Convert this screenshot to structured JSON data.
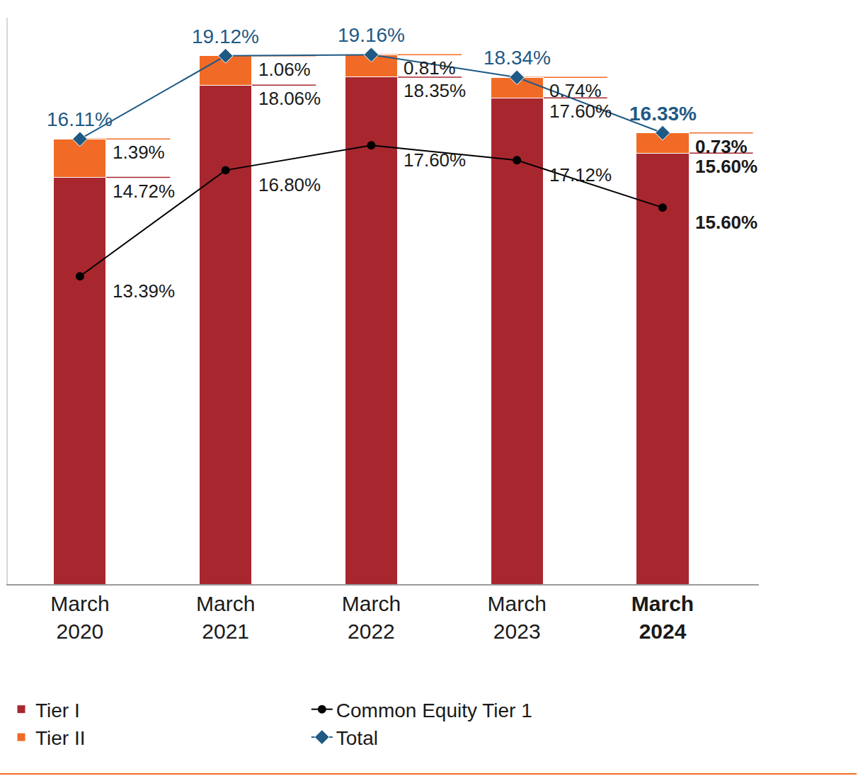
{
  "chart_data": {
    "type": "bar",
    "categories": [
      "March 2020",
      "March 2021",
      "March 2022",
      "March 2023",
      "March 2024"
    ],
    "stacked": true,
    "data_labels": true,
    "tick_labels": "x",
    "grid": false,
    "legend": "bottom left",
    "ylim": [
      0,
      20.5
    ],
    "yticks": [],
    "y2lim": [
      3.5,
      21.7
    ],
    "y2ticks": [],
    "series": [
      {
        "name": "Tier I",
        "type": "bar",
        "color": "#a8272f",
        "values": [
          14.72,
          18.06,
          18.35,
          17.6,
          15.6
        ],
        "value_labels": [
          "14.72%",
          "18.06%",
          "18.35%",
          "17.60%",
          "15.60%"
        ]
      },
      {
        "name": "Tier II",
        "type": "bar",
        "color": "#f26b26",
        "values": [
          1.39,
          1.06,
          0.81,
          0.74,
          0.73
        ],
        "value_labels": [
          "1.39%",
          "1.06%",
          "0.81%",
          "0.74%",
          "0.73%"
        ]
      },
      {
        "name": "Common Equity Tier 1",
        "type": "line",
        "color": "#000000",
        "marker": "circle",
        "axis": "y2",
        "values": [
          13.39,
          16.8,
          17.6,
          17.12,
          15.6
        ],
        "value_labels": [
          "13.39%",
          "16.80%",
          "17.60%",
          "17.12%",
          "15.60%"
        ]
      },
      {
        "name": "Total",
        "type": "line",
        "color": "#1f5a85",
        "marker": "diamond",
        "values": [
          16.11,
          19.12,
          19.16,
          18.34,
          16.33
        ],
        "value_labels": [
          "16.11%",
          "19.12%",
          "19.16%",
          "18.34%",
          "16.33%"
        ]
      }
    ]
  }
}
